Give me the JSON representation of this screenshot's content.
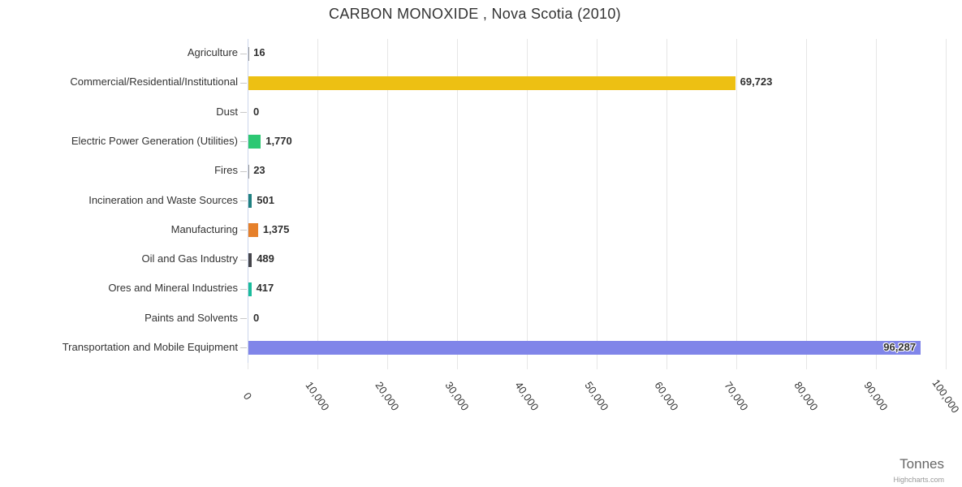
{
  "chart_data": {
    "type": "bar",
    "orientation": "horizontal",
    "title": "CARBON MONOXIDE , Nova Scotia (2010)",
    "xlabel": "Tonnes",
    "ylabel": "",
    "credit": "Highcharts.com",
    "legend": "none",
    "grid": "vertical gridlines on",
    "categories": [
      "Agriculture",
      "Commercial/Residential/Institutional",
      "Dust",
      "Electric Power Generation (Utilities)",
      "Fires",
      "Incineration and Waste Sources",
      "Manufacturing",
      "Oil and Gas Industry",
      "Ores and Mineral Industries",
      "Paints and Solvents",
      "Transportation and Mobile Equipment"
    ],
    "values": [
      16,
      69723,
      0,
      1770,
      23,
      501,
      1375,
      489,
      417,
      0,
      96287
    ],
    "value_labels": [
      "16",
      "69,723",
      "0",
      "1,770",
      "23",
      "501",
      "1,375",
      "489",
      "417",
      "0",
      "96,287"
    ],
    "bar_colors": [
      "#999999",
      "#EDC013",
      "#BBBBBB",
      "#2DC873",
      "#999999",
      "#1F8080",
      "#E6802A",
      "#45454B",
      "#1ABC9C",
      "#999999",
      "#8085E9"
    ],
    "axis": {
      "min": 0,
      "max": 100000,
      "tick_interval": 10000,
      "tick_labels": [
        "0",
        "10,000",
        "20,000",
        "30,000",
        "40,000",
        "50,000",
        "60,000",
        "70,000",
        "80,000",
        "90,000",
        "100,000"
      ]
    },
    "style_colors": {
      "gridline": "#e6e6e6",
      "axis_line": "#ccd6eb",
      "category_tick": "#c8c8c8",
      "title_text": "#333333",
      "label_text": "#333333",
      "value_text": "#2f2f2f",
      "axis_title_text": "#666666",
      "credit_text": "#999999"
    }
  }
}
